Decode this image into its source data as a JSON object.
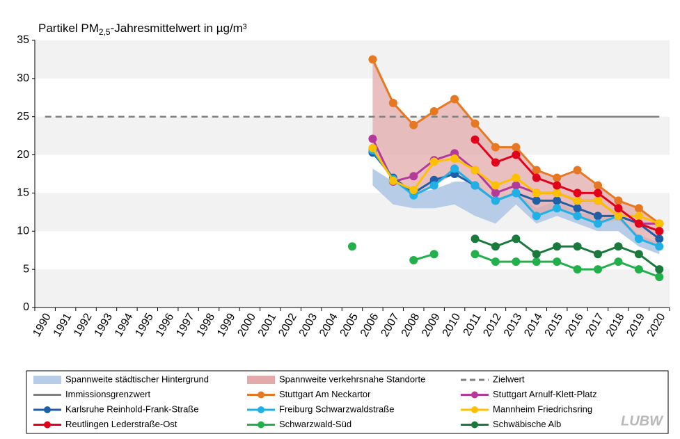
{
  "chart_data": {
    "type": "line",
    "title": [
      "Partikel PM",
      "2,5",
      "-Jahresmittelwert  in µg/m³"
    ],
    "categories": [
      "1990",
      "1991",
      "1992",
      "1993",
      "1994",
      "1995",
      "1996",
      "1997",
      "1998",
      "1999",
      "2000",
      "2001",
      "2002",
      "2003",
      "2004",
      "2005",
      "2006",
      "2007",
      "2008",
      "2009",
      "2010",
      "2011",
      "2012",
      "2013",
      "2014",
      "2015",
      "2016",
      "2017",
      "2018",
      "2019",
      "2020"
    ],
    "ylim": [
      0,
      35
    ],
    "yticks": [
      0,
      5,
      10,
      15,
      20,
      25,
      30,
      35
    ],
    "bands": true,
    "ranges": [
      {
        "name": "Spannweite städtischer Hintergrund",
        "color": "#b7cce6",
        "upper": [
          null,
          null,
          null,
          null,
          null,
          null,
          null,
          null,
          null,
          null,
          null,
          null,
          null,
          null,
          null,
          null,
          18.2,
          16.5,
          15,
          15.5,
          16.5,
          16.5,
          14,
          15,
          13,
          14,
          12.5,
          12,
          12,
          9.5,
          8.5
        ],
        "lower": [
          null,
          null,
          null,
          null,
          null,
          null,
          null,
          null,
          null,
          null,
          null,
          null,
          null,
          null,
          null,
          null,
          16,
          13.5,
          13,
          13,
          13.5,
          12,
          11,
          13.5,
          11,
          12,
          11,
          10,
          10,
          8,
          7
        ]
      },
      {
        "name": "Spannweite verkehrsnahe Standorte",
        "color": "#e3aaaa",
        "upper": [
          null,
          null,
          null,
          null,
          null,
          null,
          null,
          null,
          null,
          null,
          null,
          null,
          null,
          null,
          null,
          null,
          32.5,
          26.8,
          23.9,
          25.7,
          27.3,
          24.1,
          21,
          21,
          18,
          17,
          18,
          16,
          14,
          13,
          11
        ],
        "lower": [
          null,
          null,
          null,
          null,
          null,
          null,
          null,
          null,
          null,
          null,
          null,
          null,
          null,
          null,
          null,
          null,
          20.3,
          16.5,
          14.7,
          16,
          17.5,
          16,
          14,
          15,
          12,
          13,
          12,
          11,
          11.5,
          9,
          8
        ]
      }
    ],
    "series": [
      {
        "name": "Zielwert",
        "color": "#808080",
        "dashed": true,
        "marker": false,
        "values": [
          25,
          25,
          25,
          25,
          25,
          25,
          25,
          25,
          25,
          25,
          25,
          25,
          25,
          25,
          25,
          25,
          25,
          25,
          25,
          25,
          25,
          25,
          25,
          25,
          25,
          25,
          null,
          null,
          null,
          null,
          null
        ]
      },
      {
        "name": "Immissionsgrenzwert",
        "color": "#808080",
        "dashed": false,
        "marker": false,
        "values": [
          null,
          null,
          null,
          null,
          null,
          null,
          null,
          null,
          null,
          null,
          null,
          null,
          null,
          null,
          null,
          null,
          null,
          null,
          null,
          null,
          null,
          null,
          null,
          null,
          null,
          25,
          25,
          25,
          25,
          25,
          25
        ]
      },
      {
        "name": "Stuttgart Am Neckartor",
        "color": "#e87722",
        "dashed": false,
        "marker": true,
        "values": [
          null,
          null,
          null,
          null,
          null,
          null,
          null,
          null,
          null,
          null,
          null,
          null,
          null,
          null,
          null,
          null,
          32.5,
          26.8,
          23.9,
          25.7,
          27.3,
          24.1,
          21,
          21,
          18,
          17,
          18,
          16,
          14,
          13,
          11
        ]
      },
      {
        "name": "Stuttgart Arnulf-Klett-Platz",
        "color": "#b5399b",
        "dashed": false,
        "marker": true,
        "values": [
          null,
          null,
          null,
          null,
          null,
          null,
          null,
          null,
          null,
          null,
          null,
          null,
          null,
          null,
          null,
          null,
          22.1,
          16.5,
          17.2,
          19.3,
          20.2,
          18,
          15,
          16,
          15,
          15,
          14,
          14,
          12,
          11,
          11
        ]
      },
      {
        "name": "Karlsruhe Reinhold-Frank-Straße",
        "color": "#1f5fa8",
        "dashed": false,
        "marker": true,
        "values": [
          null,
          null,
          null,
          null,
          null,
          null,
          null,
          null,
          null,
          null,
          null,
          null,
          null,
          null,
          null,
          null,
          20.3,
          17,
          15,
          16.7,
          17.5,
          16,
          14,
          15,
          14,
          14,
          13,
          12,
          12,
          11,
          9
        ]
      },
      {
        "name": "Freiburg Schwarzwaldstraße",
        "color": "#1eb0e6",
        "dashed": false,
        "marker": true,
        "values": [
          null,
          null,
          null,
          null,
          null,
          null,
          null,
          null,
          null,
          null,
          null,
          null,
          null,
          null,
          null,
          null,
          20.6,
          16.8,
          14.7,
          16,
          18.2,
          16,
          14,
          15,
          12,
          13,
          12,
          11,
          12,
          9,
          8
        ]
      },
      {
        "name": "Mannheim Friedrichsring",
        "color": "#ffc000",
        "dashed": false,
        "marker": true,
        "values": [
          null,
          null,
          null,
          null,
          null,
          null,
          null,
          null,
          null,
          null,
          null,
          null,
          null,
          null,
          null,
          null,
          20.9,
          16.6,
          15.4,
          19.1,
          19.5,
          18,
          16,
          17,
          15,
          15,
          14,
          14,
          12,
          12,
          11
        ]
      },
      {
        "name": "Reutlingen Lederstraße-Ost",
        "color": "#e3001b",
        "dashed": false,
        "marker": true,
        "values": [
          null,
          null,
          null,
          null,
          null,
          null,
          null,
          null,
          null,
          null,
          null,
          null,
          null,
          null,
          null,
          null,
          null,
          null,
          null,
          null,
          null,
          22,
          19,
          20,
          17,
          16,
          15,
          15,
          13,
          11,
          10
        ]
      },
      {
        "name": "Schwarzwald-Süd",
        "color": "#22b04b",
        "dashed": false,
        "marker": true,
        "values": [
          null,
          null,
          null,
          null,
          null,
          null,
          null,
          null,
          null,
          null,
          null,
          null,
          null,
          null,
          null,
          8,
          null,
          null,
          6.2,
          7,
          null,
          7,
          6,
          6,
          6,
          6,
          5,
          5,
          6,
          5,
          4
        ]
      },
      {
        "name": "Schwäbische Alb",
        "color": "#1a7a3c",
        "dashed": false,
        "marker": true,
        "values": [
          null,
          null,
          null,
          null,
          null,
          null,
          null,
          null,
          null,
          null,
          null,
          null,
          null,
          null,
          null,
          null,
          null,
          null,
          null,
          null,
          null,
          9,
          8,
          9,
          7,
          8,
          8,
          7,
          8,
          7,
          5
        ]
      }
    ]
  },
  "logo": "LUBW"
}
